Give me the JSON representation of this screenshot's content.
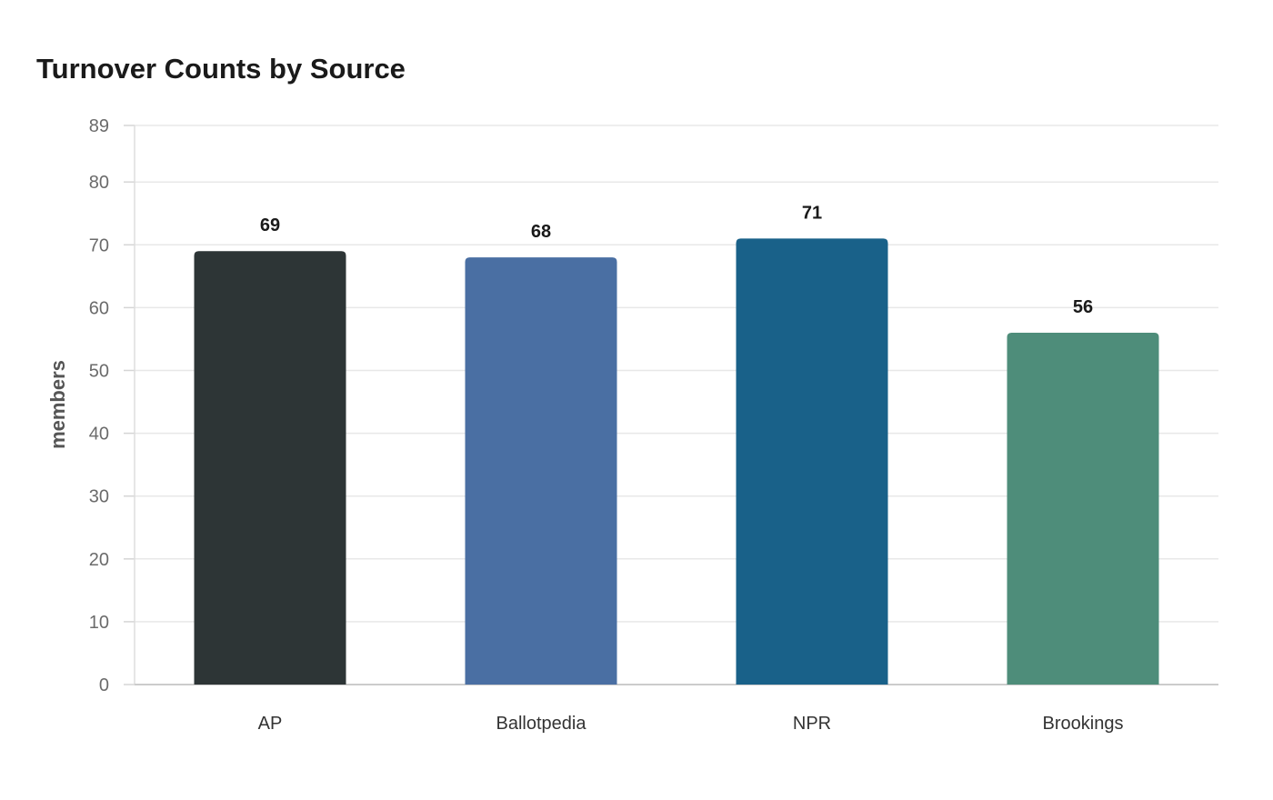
{
  "chart_data": {
    "type": "bar",
    "title": "Turnover Counts by Source",
    "xlabel": "",
    "ylabel": "members",
    "categories": [
      "AP",
      "Ballotpedia",
      "NPR",
      "Brookings"
    ],
    "values": [
      69,
      68,
      71,
      56
    ],
    "data_labels": [
      "69",
      "68",
      "71",
      "56"
    ],
    "colors": [
      "#2d3536",
      "#4a6fa3",
      "#196189",
      "#4e8d7a"
    ],
    "yticks": [
      0,
      10,
      20,
      30,
      40,
      50,
      60,
      70,
      80,
      89
    ],
    "ylim": [
      0,
      89
    ],
    "grid": true,
    "legend": "none"
  }
}
